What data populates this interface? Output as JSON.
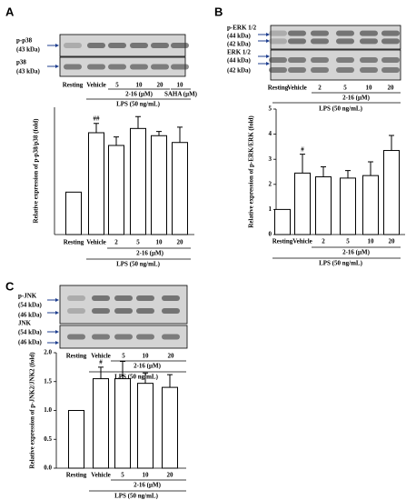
{
  "panels": [
    {
      "letter": "A",
      "blot_labels": [
        "p-p38",
        "(43 kDa)",
        "p38",
        "(43 kDa)"
      ],
      "lanes": [
        "Resting",
        "Vehicle",
        "5",
        "10",
        "20",
        "10"
      ],
      "lane_groups": [
        "2-16 (μM)",
        "SAHA (μM)",
        "LPS (50 ng/mL)"
      ],
      "chart": {
        "type": "bar",
        "y_label": "Relative expression of p-p38/p38 (fold)",
        "categories": [
          "Resting",
          "Vehicle",
          "2",
          "5",
          "10",
          "20"
        ],
        "values": [
          1.0,
          2.4,
          2.1,
          2.5,
          2.33,
          2.17
        ],
        "errors": [
          0,
          0.22,
          0.2,
          0.28,
          0.1,
          0.36
        ],
        "annotations": [
          {
            "category": "Vehicle",
            "text": "##"
          }
        ],
        "ylim": [
          0,
          3
        ],
        "groups": [
          "2-16 (μM)",
          "LPS (50 ng/mL)"
        ]
      }
    },
    {
      "letter": "B",
      "blot_labels": [
        "p-ERK 1/2",
        "(44 kDa)",
        "(42 kDa)",
        "ERK 1/2",
        "(44 kDa)",
        "(42 kDa)"
      ],
      "lanes": [
        "Resting",
        "Vehicle",
        "2",
        "5",
        "10",
        "20"
      ],
      "lane_groups": [
        "2-16 (μM)",
        "LPS (50 ng/mL)"
      ],
      "chart": {
        "type": "bar",
        "y_label": "Relative expression of p-ERK/ERK (fold)",
        "categories": [
          "Resting",
          "Vehicle",
          "2",
          "5",
          "10",
          "20"
        ],
        "values": [
          1.0,
          2.45,
          2.3,
          2.25,
          2.35,
          3.35
        ],
        "errors": [
          0,
          0.75,
          0.4,
          0.3,
          0.55,
          0.6
        ],
        "annotations": [
          {
            "category": "Vehicle",
            "text": "#"
          }
        ],
        "ylim": [
          0,
          5
        ],
        "yticks": [
          0,
          1,
          2,
          3,
          4,
          5
        ],
        "groups": [
          "2-16 (μM)",
          "LPS (50 ng/mL)"
        ]
      }
    },
    {
      "letter": "C",
      "blot_labels": [
        "p-JNK",
        "(54 kDa)",
        "(46 kDa)",
        "JNK",
        "(54 kDa)",
        "(46 kDa)"
      ],
      "lanes": [
        "Resting",
        "Vehicle",
        "5",
        "10",
        "20"
      ],
      "lane_groups": [
        "2-16 (μM)",
        "LPS (50 ng/mL)"
      ],
      "chart": {
        "type": "bar",
        "y_label": "Relative expression of p-JNK2/JNK2 (fold)",
        "categories": [
          "Resting",
          "Vehicle",
          "5",
          "10",
          "20"
        ],
        "values": [
          1.0,
          1.55,
          1.55,
          1.47,
          1.4
        ],
        "errors": [
          0,
          0.2,
          0.3,
          0.18,
          0.22
        ],
        "annotations": [
          {
            "category": "Vehicle",
            "text": "#"
          }
        ],
        "ylim": [
          0,
          2
        ],
        "yticks": [
          {
            "value": 0,
            "label": "0.0"
          },
          0.5,
          {
            "value": 1,
            "label": "1.0"
          },
          1.5,
          {
            "value": 2,
            "label": "2.0"
          }
        ],
        "groups": [
          "2-16 (μM)",
          "LPS (50 ng/mL)"
        ]
      }
    }
  ]
}
